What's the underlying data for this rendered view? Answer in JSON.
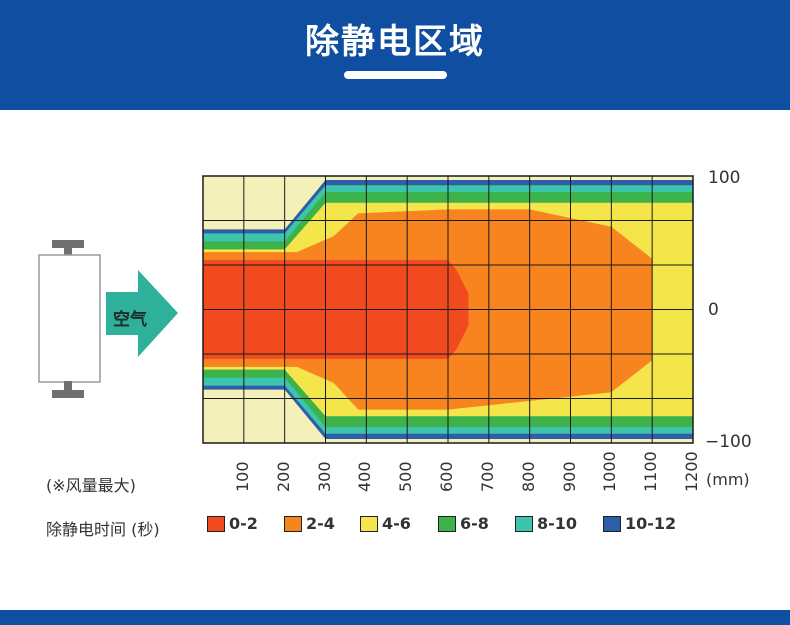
{
  "header": {
    "title": "除静电区域"
  },
  "arrow_label": "空气",
  "note": "(※风量最大)",
  "legend_title": "除静电时间 (秒)",
  "colors": {
    "header_bg": "#0f4ea0",
    "0-2": "#f04a1e",
    "2-4": "#f7841f",
    "4-6": "#f4e54a",
    "6-8": "#3db24a",
    "8-10": "#3cc4ad",
    "10-12": "#2f5ea8",
    "background": "#f4f0b9"
  },
  "chart_data": {
    "type": "heatmap",
    "title": "",
    "xlabel": "",
    "ylabel": "",
    "x_unit": "(mm)",
    "x_ticks": [
      "100",
      "200",
      "300",
      "400",
      "500",
      "600",
      "700",
      "800",
      "900",
      "1000",
      "1100",
      "1200"
    ],
    "y_ticks": [
      "100",
      "0",
      "−100"
    ],
    "xlim": [
      0,
      1200
    ],
    "ylim": [
      -100,
      100
    ],
    "legend": [
      {
        "label": "0-2",
        "color": "#f04a1e"
      },
      {
        "label": "2-4",
        "color": "#f7841f"
      },
      {
        "label": "4-6",
        "color": "#f4e54a"
      },
      {
        "label": "6-8",
        "color": "#3db24a"
      },
      {
        "label": "8-10",
        "color": "#3cc4ad"
      },
      {
        "label": "10-12",
        "color": "#2f5ea8"
      }
    ],
    "zones": [
      {
        "range": "10-12",
        "outline": [
          [
            0,
            -60
          ],
          [
            200,
            -60
          ],
          [
            300,
            -97
          ],
          [
            1200,
            -97
          ],
          [
            1200,
            97
          ],
          [
            300,
            97
          ],
          [
            200,
            60
          ],
          [
            0,
            60
          ]
        ]
      },
      {
        "range": "8-10",
        "outline": [
          [
            0,
            -57
          ],
          [
            200,
            -57
          ],
          [
            300,
            -93
          ],
          [
            1200,
            -93
          ],
          [
            1200,
            93
          ],
          [
            300,
            93
          ],
          [
            200,
            57
          ],
          [
            0,
            57
          ]
        ]
      },
      {
        "range": "6-8",
        "outline": [
          [
            0,
            -51
          ],
          [
            200,
            -51
          ],
          [
            300,
            -88
          ],
          [
            1200,
            -88
          ],
          [
            1200,
            88
          ],
          [
            300,
            88
          ],
          [
            200,
            51
          ],
          [
            0,
            51
          ]
        ]
      },
      {
        "range": "4-6",
        "outline": [
          [
            0,
            -45
          ],
          [
            200,
            -45
          ],
          [
            300,
            -80
          ],
          [
            1200,
            -80
          ],
          [
            1200,
            80
          ],
          [
            300,
            80
          ],
          [
            200,
            45
          ],
          [
            0,
            45
          ]
        ]
      },
      {
        "range": "2-4",
        "outline": [
          [
            0,
            -43
          ],
          [
            230,
            -43
          ],
          [
            320,
            -55
          ],
          [
            380,
            -75
          ],
          [
            600,
            -75
          ],
          [
            1000,
            -62
          ],
          [
            1100,
            -38
          ],
          [
            1100,
            38
          ],
          [
            1000,
            62
          ],
          [
            800,
            75
          ],
          [
            600,
            75
          ],
          [
            380,
            72
          ],
          [
            320,
            55
          ],
          [
            230,
            43
          ],
          [
            0,
            43
          ]
        ]
      },
      {
        "range": "0-2",
        "outline": [
          [
            0,
            -37
          ],
          [
            600,
            -37
          ],
          [
            620,
            -30
          ],
          [
            650,
            -12
          ],
          [
            650,
            12
          ],
          [
            620,
            30
          ],
          [
            600,
            37
          ],
          [
            0,
            37
          ]
        ]
      }
    ]
  }
}
